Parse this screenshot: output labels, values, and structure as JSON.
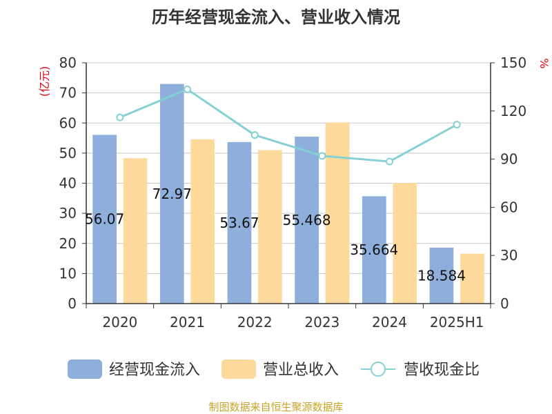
{
  "chart_data": {
    "type": "bar",
    "title": "历年经营现金流入、营业收入情况",
    "categories": [
      "2020",
      "2021",
      "2022",
      "2023",
      "2024",
      "2025H1"
    ],
    "series": [
      {
        "name": "经营现金流入",
        "type": "bar",
        "axis": "left",
        "color": "#8eaedb",
        "values": [
          56.07,
          72.97,
          53.67,
          55.468,
          35.664,
          18.584
        ],
        "data_labels": [
          "56.07",
          "72.97",
          "53.67",
          "55.468",
          "35.664",
          "18.584"
        ]
      },
      {
        "name": "营业总收入",
        "type": "bar",
        "axis": "left",
        "color": "#fdd99b",
        "values": [
          48.3,
          54.6,
          51.0,
          60.2,
          40.1,
          16.6
        ]
      },
      {
        "name": "营收现金比",
        "type": "line",
        "axis": "right",
        "color": "#85d0d5",
        "values": [
          116,
          133.5,
          105,
          92,
          88.5,
          111.5
        ]
      }
    ],
    "y_left": {
      "unit": "(亿元)",
      "min": 0,
      "max": 80,
      "ticks": [
        0,
        10,
        20,
        30,
        40,
        50,
        60,
        70,
        80
      ],
      "unit_color": "#e60012"
    },
    "y_right": {
      "unit": "%",
      "min": 0,
      "max": 150,
      "ticks": [
        0,
        30,
        60,
        90,
        120,
        150
      ],
      "unit_color": "#e60012"
    },
    "grid": true,
    "legend_position": "bottom"
  },
  "source": "制图数据来自恒生聚源数据库"
}
